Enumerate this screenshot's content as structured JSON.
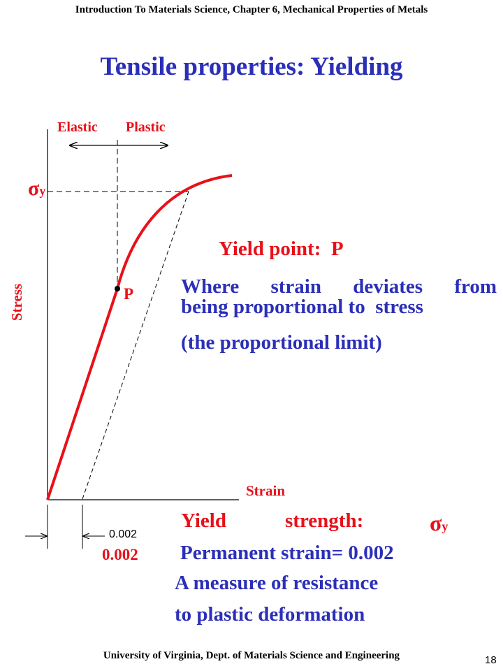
{
  "header": {
    "text": "Introduction To Materials Science, Chapter 6, Mechanical Properties of Metals"
  },
  "title": "Tensile properties: Yielding",
  "diagram": {
    "elastic_label": "Elastic",
    "plastic_label": "Plastic",
    "sigma_symbol": "σ",
    "sigma_subscript": "y",
    "p_label": "P",
    "stress_label": "Stress",
    "strain_label": "Strain",
    "offset_tick_label": "0.002",
    "offset_value_label": "0.002"
  },
  "yield_point": {
    "heading": "Yield point:  P",
    "line1": "Where strain deviates from",
    "line2": "being proportional to  stress",
    "line3": "(the proportional limit)"
  },
  "yield_strength": {
    "label_yield": "Yield",
    "label_strength": "strength:",
    "sigma_symbol": "σ",
    "sigma_subscript": "y",
    "permanent_strain": "Permanent strain= 0.002",
    "measure_line1": "A measure of resistance",
    "measure_line2": "to plastic deformation"
  },
  "footer": {
    "text": "University of Virginia, Dept. of Materials Science and Engineering",
    "page": "18"
  },
  "colors": {
    "title": "#2b2fb8",
    "accent_red": "#e8101a"
  }
}
